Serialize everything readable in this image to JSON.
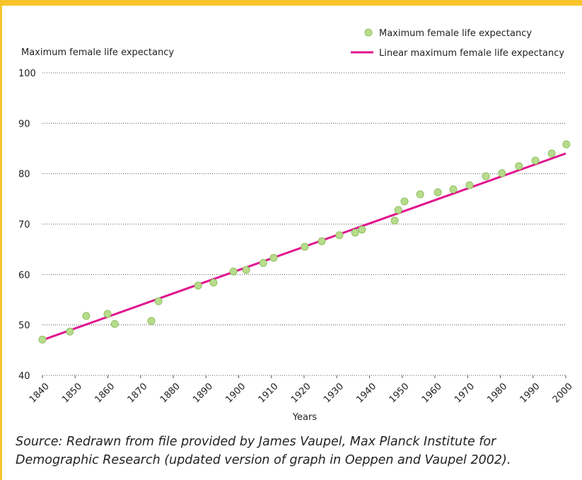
{
  "chart_data": {
    "type": "scatter",
    "ylabel": "Maximum female life expectancy",
    "xlabel": "Years",
    "xlim": [
      1840,
      2000
    ],
    "xticks": [
      1840,
      1850,
      1860,
      1870,
      1880,
      1890,
      1900,
      1910,
      1920,
      1930,
      1940,
      1950,
      1960,
      1970,
      1980,
      1990,
      2000
    ],
    "ylim": [
      40,
      100
    ],
    "yticks": [
      40,
      50,
      60,
      70,
      80,
      90,
      100
    ],
    "grid": true,
    "legend": "top-right",
    "series": [
      {
        "name": "Maximum female life expectancy",
        "color": "#b7dc8c",
        "type": "scatter",
        "x": [
          1840,
          1848.4,
          1853.4,
          1859.9,
          1862.1,
          1873.3,
          1875.5,
          1887.6,
          1892.3,
          1898.4,
          1902.3,
          1907.5,
          1910.7,
          1920.2,
          1925.4,
          1930.8,
          1935.6,
          1937.7,
          1947.7,
          1948.8,
          1950.7,
          1955.5,
          1960.9,
          1965.6,
          1970.6,
          1975.6,
          1980.5,
          1985.7,
          1990.7,
          1995.7,
          2000.2
        ],
        "values": [
          47.1,
          48.7,
          51.8,
          52.2,
          50.2,
          50.8,
          54.7,
          57.8,
          58.4,
          60.6,
          60.9,
          62.3,
          63.3,
          65.5,
          66.6,
          67.8,
          68.3,
          68.9,
          70.7,
          72.8,
          74.5,
          75.9,
          76.3,
          76.9,
          77.7,
          79.5,
          80.1,
          81.5,
          82.6,
          84.0,
          85.8
        ]
      },
      {
        "name": "Linear maximum female life expectancy",
        "color": "#e0158e",
        "type": "line",
        "x": [
          1840,
          2000
        ],
        "values": [
          47.0,
          84.0
        ]
      }
    ]
  },
  "source": [
    "Source: Redrawn from file provided by James Vaupel, Max Planck Institute for",
    "Demographic Research (updated version of graph in Oeppen and Vaupel 2002)."
  ]
}
